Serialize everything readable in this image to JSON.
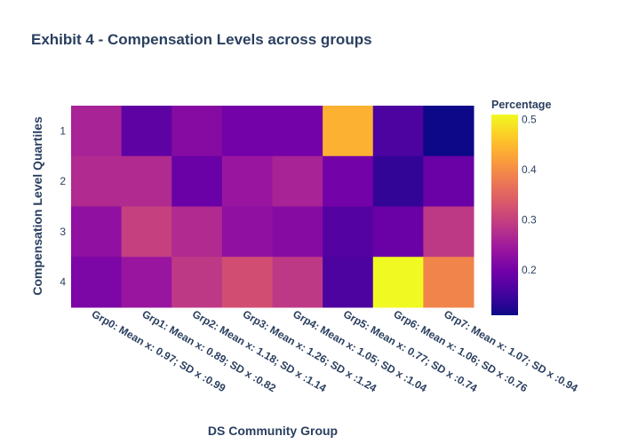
{
  "chart_data": {
    "type": "heatmap",
    "title": "Exhibit 4 - Compensation Levels across groups",
    "xlabel": "DS Community Group",
    "ylabel": "Compensation Level Quartiles",
    "x_categories": [
      "Grp0: Mean x: 0.97; SD x :0.99",
      "Grp1: Mean x: 0.89; SD x :0.82",
      "Grp2: Mean x: 1.18; SD x :1.14",
      "Grp3: Mean x: 1.26; SD x :1.24",
      "Grp4: Mean x: 1.05; SD x :1.04",
      "Grp5: Mean x: 0.77; SD x :0.74",
      "Grp6: Mean x: 1.06; SD x :0.76",
      "Grp7: Mean x: 1.07; SD x :0.94"
    ],
    "y_categories": [
      "1",
      "2",
      "3",
      "4"
    ],
    "values": [
      [
        0.26,
        0.18,
        0.22,
        0.2,
        0.2,
        0.44,
        0.16,
        0.11
      ],
      [
        0.27,
        0.27,
        0.19,
        0.24,
        0.26,
        0.2,
        0.14,
        0.19
      ],
      [
        0.23,
        0.3,
        0.27,
        0.23,
        0.22,
        0.17,
        0.19,
        0.29
      ],
      [
        0.21,
        0.24,
        0.29,
        0.32,
        0.29,
        0.16,
        0.51,
        0.39
      ]
    ],
    "colorbar": {
      "title": "Percentage",
      "tickvals": [
        0.2,
        0.3,
        0.4,
        0.5
      ],
      "ticklabels": [
        "0.2",
        "0.3",
        "0.4",
        "0.5"
      ],
      "range": [
        0.11,
        0.51
      ]
    },
    "colorscale": [
      "#0d0887",
      "#46039f",
      "#7201a8",
      "#9c179e",
      "#bd3786",
      "#d8576b",
      "#ed7953",
      "#fb9f3a",
      "#fdca26",
      "#f0f921"
    ]
  }
}
